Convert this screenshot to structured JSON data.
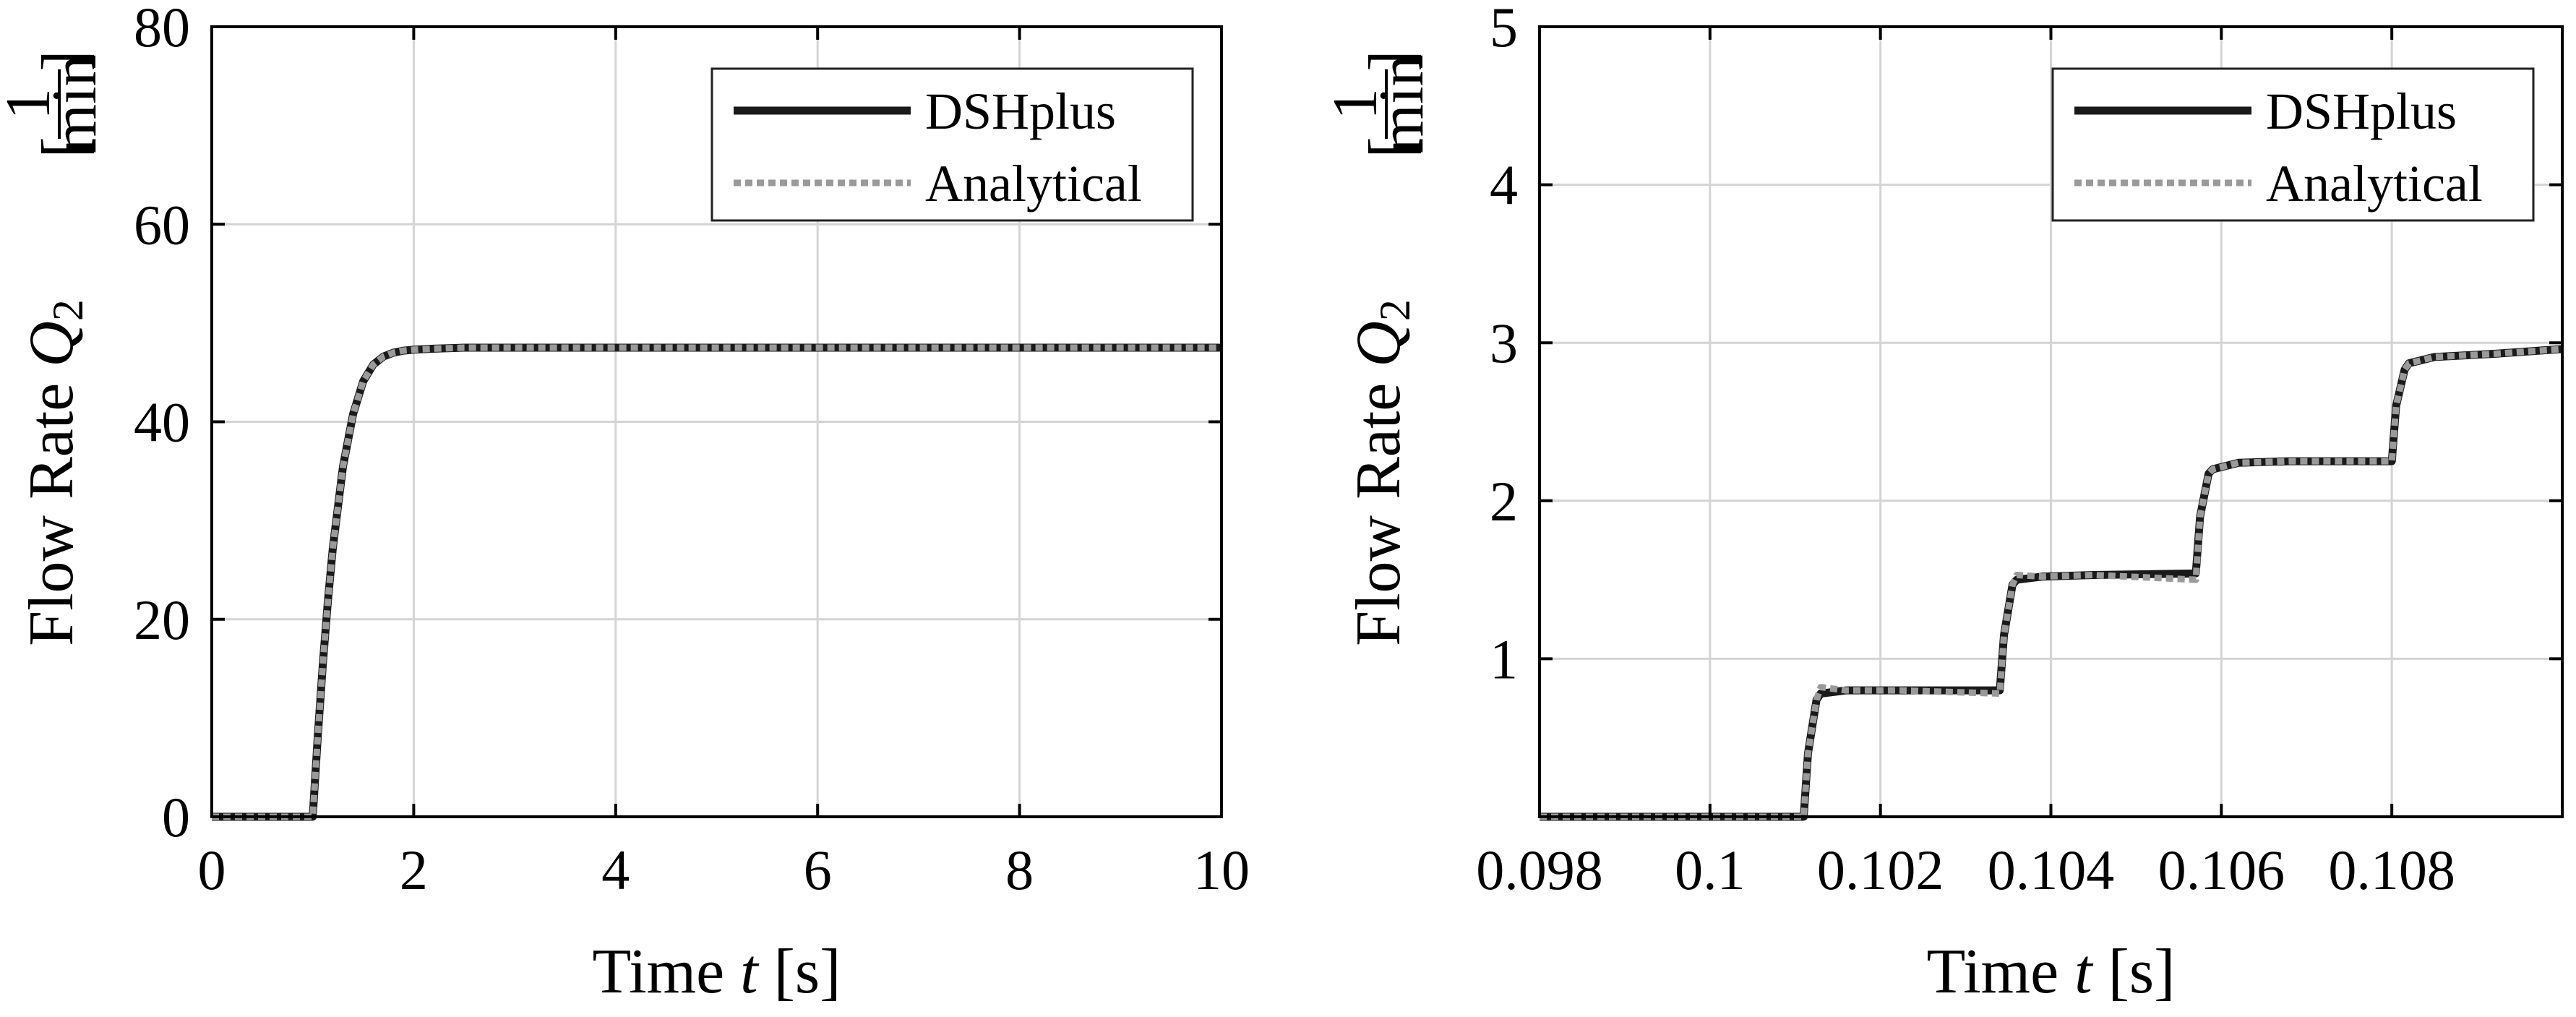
{
  "chart_data": [
    {
      "type": "line",
      "title": "",
      "xlabel": {
        "prefix": "Time ",
        "var": "t",
        "unit": " [s]"
      },
      "ylabel": {
        "prefix": "Flow Rate ",
        "var": "Q",
        "sub": "2",
        "unit_num": "1",
        "unit_den": "min"
      },
      "xlim": [
        0,
        10
      ],
      "ylim": [
        0,
        80
      ],
      "xticks": [
        0,
        2,
        4,
        6,
        8,
        10
      ],
      "xtick_labels": [
        "0",
        "2",
        "4",
        "6",
        "8",
        "10"
      ],
      "yticks": [
        0,
        20,
        40,
        60,
        80
      ],
      "ytick_labels": [
        "0",
        "20",
        "40",
        "60",
        "80"
      ],
      "grid": true,
      "legend_position": "top-right",
      "series": [
        {
          "name": "DSHplus",
          "style": "solid",
          "color": "#1a1a1a",
          "x": [
            0,
            1.0,
            1.02,
            1.05,
            1.1,
            1.15,
            1.2,
            1.3,
            1.4,
            1.5,
            1.6,
            1.7,
            1.8,
            1.9,
            2.0,
            2.2,
            2.5,
            3,
            4,
            5,
            6,
            7,
            8,
            9,
            10
          ],
          "y": [
            0,
            0,
            3.3,
            8.2,
            15.5,
            21.9,
            27.3,
            35.5,
            40.8,
            44.1,
            45.8,
            46.6,
            47.0,
            47.2,
            47.3,
            47.4,
            47.5,
            47.5,
            47.5,
            47.5,
            47.5,
            47.5,
            47.5,
            47.5,
            47.5
          ]
        },
        {
          "name": "Analytical",
          "style": "dotted",
          "color": "#9a9a9a",
          "x": [
            0,
            1.0,
            1.02,
            1.05,
            1.1,
            1.15,
            1.2,
            1.3,
            1.4,
            1.5,
            1.6,
            1.7,
            1.8,
            1.9,
            2.0,
            2.2,
            2.5,
            3,
            4,
            5,
            6,
            7,
            8,
            9,
            10
          ],
          "y": [
            0,
            0,
            3.3,
            8.2,
            15.5,
            21.9,
            27.3,
            35.5,
            40.8,
            44.1,
            45.8,
            46.6,
            47.0,
            47.2,
            47.3,
            47.4,
            47.5,
            47.5,
            47.5,
            47.5,
            47.5,
            47.5,
            47.5,
            47.5,
            47.5
          ]
        }
      ]
    },
    {
      "type": "line",
      "title": "",
      "xlabel": {
        "prefix": "Time ",
        "var": "t",
        "unit": " [s]"
      },
      "ylabel": {
        "prefix": "Flow Rate ",
        "var": "Q",
        "sub": "2",
        "unit_num": "1",
        "unit_den": "min"
      },
      "xlim": [
        0.098,
        0.11
      ],
      "ylim": [
        0,
        5
      ],
      "xticks": [
        0.098,
        0.1,
        0.102,
        0.104,
        0.106,
        0.108
      ],
      "xtick_labels": [
        "0.098",
        "0.1",
        "0.102",
        "0.104",
        "0.106",
        "0.108"
      ],
      "yticks": [
        1,
        2,
        3,
        4,
        5
      ],
      "ytick_labels": [
        "1",
        "2",
        "3",
        "4",
        "5"
      ],
      "grid": true,
      "legend_position": "top-right",
      "series": [
        {
          "name": "DSHplus",
          "style": "solid",
          "color": "#1a1a1a",
          "x": [
            0.098,
            0.1011,
            0.10115,
            0.10125,
            0.1013,
            0.1016,
            0.1022,
            0.1034,
            0.10345,
            0.10355,
            0.1036,
            0.1039,
            0.1045,
            0.1057,
            0.10575,
            0.10585,
            0.1059,
            0.1062,
            0.1068,
            0.108,
            0.10805,
            0.10815,
            0.1082,
            0.1085,
            0.1092,
            0.11
          ],
          "y": [
            0,
            0,
            0.4,
            0.74,
            0.78,
            0.8,
            0.8,
            0.8,
            1.15,
            1.47,
            1.5,
            1.52,
            1.53,
            1.54,
            1.9,
            2.17,
            2.2,
            2.24,
            2.25,
            2.25,
            2.6,
            2.83,
            2.87,
            2.91,
            2.93,
            2.96
          ]
        },
        {
          "name": "Analytical",
          "style": "dotted",
          "color": "#9a9a9a",
          "x": [
            0.098,
            0.1011,
            0.10115,
            0.10125,
            0.1013,
            0.1016,
            0.1022,
            0.1034,
            0.10345,
            0.10355,
            0.1036,
            0.1039,
            0.1045,
            0.1057,
            0.10575,
            0.10585,
            0.1059,
            0.1062,
            0.1068,
            0.108,
            0.10805,
            0.10815,
            0.1082,
            0.1085,
            0.1092,
            0.11
          ],
          "y": [
            0,
            0,
            0.4,
            0.74,
            0.82,
            0.8,
            0.8,
            0.78,
            1.15,
            1.47,
            1.53,
            1.52,
            1.53,
            1.5,
            1.9,
            2.17,
            2.2,
            2.24,
            2.25,
            2.25,
            2.6,
            2.83,
            2.87,
            2.91,
            2.93,
            2.96
          ]
        }
      ]
    }
  ]
}
